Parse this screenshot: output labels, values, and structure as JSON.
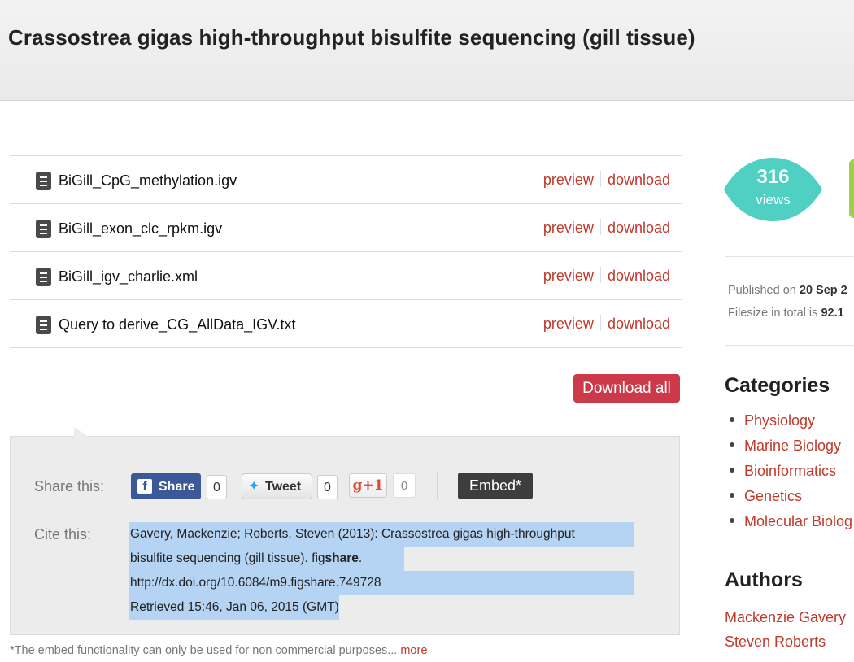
{
  "header": {
    "title": "Crassostrea gigas high-throughput bisulfite sequencing (gill tissue)"
  },
  "files": [
    {
      "name": "BiGill_CpG_methylation.igv",
      "preview": "preview",
      "download": "download"
    },
    {
      "name": "BiGill_exon_clc_rpkm.igv",
      "preview": "preview",
      "download": "download"
    },
    {
      "name": "BiGill_igv_charlie.xml",
      "preview": "preview",
      "download": "download"
    },
    {
      "name": "Query to derive_CG_AllData_IGV.txt",
      "preview": "preview",
      "download": "download"
    }
  ],
  "download_all_label": "Download all",
  "share": {
    "label": "Share this:",
    "facebook_label": "Share",
    "facebook_count": "0",
    "twitter_label": "Tweet",
    "twitter_count": "0",
    "gplus_label": "+1",
    "gplus_count": "0",
    "embed_label": "Embed*"
  },
  "cite": {
    "label": "Cite this:",
    "line1": "Gavery, Mackenzie; Roberts, Steven (2013): Crassostrea gigas high-throughput",
    "line2_prefix": "bisulfite sequencing (gill tissue). fig",
    "line2_bold": "share",
    "line2_suffix": ".",
    "line3": "http://dx.doi.org/10.6084/m9.figshare.749728",
    "line4": "Retrieved 15:46, Jan 06, 2015 (GMT)"
  },
  "footnote": {
    "text": "*The embed functionality can only be used for non commercial purposes...",
    "more_label": "more"
  },
  "stats": {
    "views_count": "316",
    "views_label": "views"
  },
  "meta": {
    "published_prefix": "Published on",
    "published_value": "20 Sep 2",
    "filesize_prefix": "Filesize in total is",
    "filesize_value": "92.1"
  },
  "categories": {
    "title": "Categories",
    "items": [
      "Physiology",
      "Marine Biology",
      "Bioinformatics",
      "Genetics",
      "Molecular Biolog"
    ]
  },
  "authors": {
    "title": "Authors",
    "items": [
      "Mackenzie Gavery",
      "Steven Roberts"
    ]
  },
  "colors": {
    "accent_red": "#c0392b",
    "download_all_bg": "#cc3a49",
    "views_badge": "#4fd0c3",
    "facebook_blue": "#3b5998",
    "highlight": "#b5d3f3"
  }
}
